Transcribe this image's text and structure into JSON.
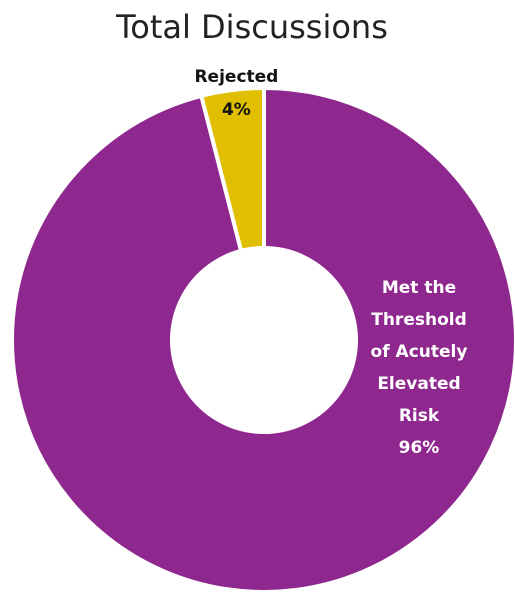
{
  "chart_data": {
    "type": "pie",
    "title": "Total Discussions",
    "hole": true,
    "slices": [
      {
        "label_lines": [
          "Met the",
          "Threshold",
          "of Acutely",
          "Elevated",
          "Risk"
        ],
        "value": 96,
        "value_label": "96%",
        "color": "#8E278E",
        "label_position": "inside"
      },
      {
        "label_lines": [
          "Rejected"
        ],
        "value": 4,
        "value_label": "4%",
        "color": "#DFBF00",
        "label_position": "outside"
      }
    ]
  }
}
